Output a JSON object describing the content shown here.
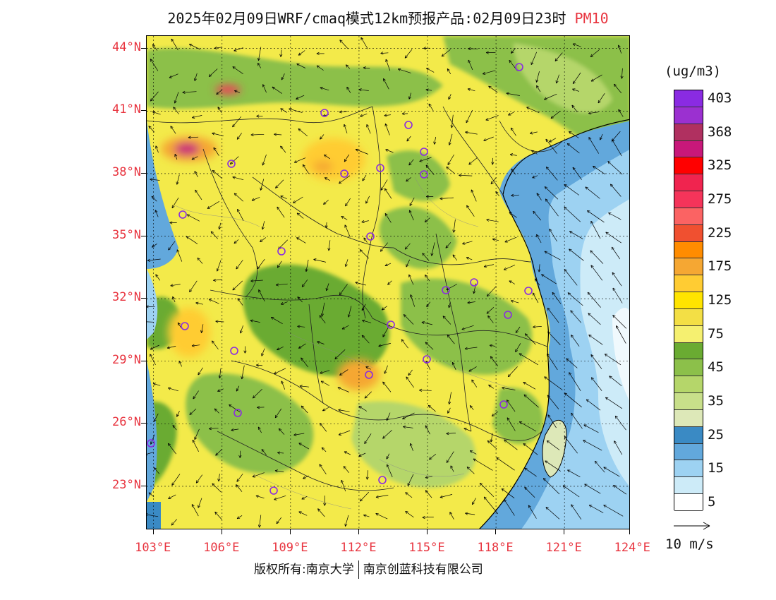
{
  "title": {
    "text": "2025年02月09日WRF/cmaq模式12km预报产品:02月09日23时",
    "variable": "PM10"
  },
  "map": {
    "lat_labels": [
      "44°N",
      "41°N",
      "38°N",
      "35°N",
      "32°N",
      "29°N",
      "26°N",
      "23°N"
    ],
    "lon_labels": [
      "103°E",
      "106°E",
      "109°E",
      "112°E",
      "115°E",
      "118°E",
      "121°E",
      "124°E"
    ],
    "lat_range": [
      20.9,
      44.6
    ],
    "lon_range": [
      102.7,
      123.9
    ],
    "sea_color": "#9fd4f2",
    "land_base_color": "#f3ea4a"
  },
  "legend": {
    "unit": "(ug/m3)",
    "levels": [
      {
        "label": "403",
        "color": "#8a2be2"
      },
      {
        "label": "",
        "color": "#9b30d0"
      },
      {
        "label": "368",
        "color": "#b03060"
      },
      {
        "label": "",
        "color": "#c8187a"
      },
      {
        "label": "325",
        "color": "#ff0000"
      },
      {
        "label": "",
        "color": "#f0244f"
      },
      {
        "label": "275",
        "color": "#f5345a"
      },
      {
        "label": "",
        "color": "#fb6363"
      },
      {
        "label": "225",
        "color": "#f05030"
      },
      {
        "label": "",
        "color": "#ff8c00"
      },
      {
        "label": "175",
        "color": "#f5a733"
      },
      {
        "label": "",
        "color": "#ffcc33"
      },
      {
        "label": "125",
        "color": "#ffe400"
      },
      {
        "label": "",
        "color": "#f3df45"
      },
      {
        "label": "75",
        "color": "#f5f070"
      },
      {
        "label": "",
        "color": "#6aab32"
      },
      {
        "label": "45",
        "color": "#8cc04a"
      },
      {
        "label": "",
        "color": "#b5d66a"
      },
      {
        "label": "35",
        "color": "#c8df8a"
      },
      {
        "label": "",
        "color": "#dde8b8"
      },
      {
        "label": "25",
        "color": "#3a8ac4"
      },
      {
        "label": "",
        "color": "#62a8dc"
      },
      {
        "label": "15",
        "color": "#9dd2f2"
      },
      {
        "label": "",
        "color": "#cdebf8"
      },
      {
        "label": "5",
        "color": "#ffffff"
      }
    ]
  },
  "vector_reference": {
    "label": "10 m/s"
  },
  "footer": {
    "copyright_left": "版权所有:南京大学",
    "copyright_right": "南京创蓝科技有限公司"
  }
}
